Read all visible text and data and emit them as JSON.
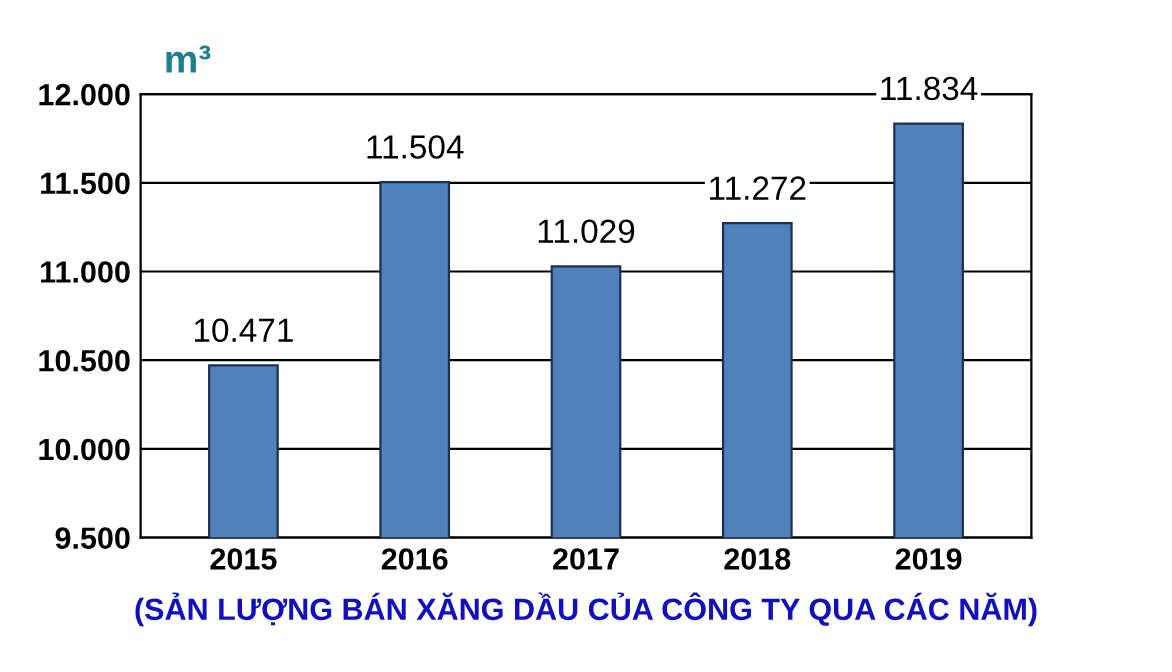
{
  "chart_data": {
    "type": "bar",
    "ylabel": "m³",
    "xlabel": "(SẢN LƯỢNG BÁN XĂNG DẦU CỦA CÔNG TY QUA CÁC NĂM)",
    "categories": [
      "2015",
      "2016",
      "2017",
      "2018",
      "2019"
    ],
    "values": [
      10471,
      11504,
      11029,
      11272,
      11834
    ],
    "value_labels": [
      "10.471",
      "11.504",
      "11.029",
      "11.272",
      "11.834"
    ],
    "color": "#4f81bd",
    "ylim": [
      9500,
      12000
    ],
    "yticks": [
      {
        "value": 9500,
        "label": "9.500"
      },
      {
        "value": 10000,
        "label": "10.000"
      },
      {
        "value": 10500,
        "label": "10.500"
      },
      {
        "value": 11000,
        "label": "11.000"
      },
      {
        "value": 11500,
        "label": "11.500"
      },
      {
        "value": 12000,
        "label": "12.000"
      }
    ],
    "grid": "y"
  }
}
